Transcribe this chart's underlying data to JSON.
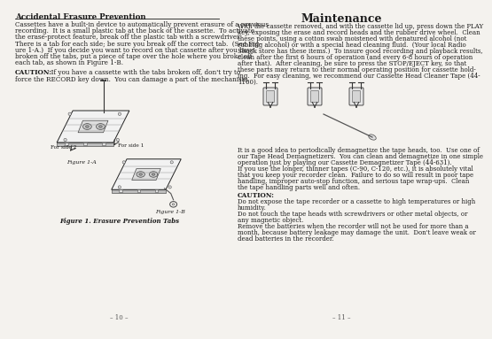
{
  "bg_color": "#f4f2ee",
  "text_color": "#1a1a1a",
  "left_title": "Accidental Erasure Prevention",
  "right_title": "Maintenance",
  "left_body": [
    "Cassettes have a built-in device to automatically prevent erasure of a previous",
    "recording.  It is a small plastic tab at the back of the cassette.  To activate",
    "the erase-protect feature, break off the plastic tab with a screwdriver.",
    "There is a tab for each side; be sure you break off the correct tab.  (See Fig-",
    "ure 1-A.)  If you decide you want to record on that cassette after you have",
    "broken off the tabs, put a piece of tape over the hole where you broke off",
    "each tab, as shown in Figure 1-B.",
    "",
    "CAUTION:  If you have a cassette with the tabs broken off, don't try to",
    "force the RECORD key down.  You can damage a part of the mechanism."
  ],
  "right_body1": [
    "With the cassette removed, and with the cassette lid up, press down the PLAY",
    "key, exposing the erase and record heads and the rubber drive wheel.  Clean",
    "these points, using a cotton swab moistened with denatured alcohol (not",
    "rubbing alcohol) or with a special head cleaning fluid.  (Your local Radio",
    "Shack store has these items.)  To insure good recording and playback results,",
    "clean after the first 6 hours of operation (and every 6-8 hours of operation",
    "after that).  After cleaning, be sure to press the STOP/EJECT key, so that",
    "these parts may return to their normal operating position for cassette hold-",
    "ing.  For easy cleaning, we recommend our Cassette Head Cleaner Tape (44-",
    "1160)."
  ],
  "right_body2": [
    "It is a good idea to periodically demagnetize the tape heads, too.  Use one of",
    "our Tape Head Demagnetizers.  You can clean and demagnetize in one simple",
    "operation just by playing our Cassette Demagnetizer Tape (44-631).",
    "If you use the longer, thinner tapes (C-90, C-120, etc.), it is absolutely vital",
    "that you keep your recorder clean.  Failure to do so will result in poor tape",
    "handling, improper auto-stop function, and serious tape wrap-ups.  Clean",
    "the tape handling parts well and often."
  ],
  "caution_title": "CAUTION:",
  "caution_lines": [
    "Do not expose the tape recorder or a cassette to high temperatures or high",
    "humidity.",
    "Do not touch the tape heads with screwdrivers or other metal objects, or",
    "any magnetic object.",
    "Remove the batteries when the recorder will not be used for more than a",
    "month, because battery leakage may damage the unit.  Don't leave weak or",
    "dead batteries in the recorder."
  ],
  "fig1_caption": "Figure 1. Erasure Prevention Tabs",
  "page_left": "– 10 –",
  "page_right": "– 11 –",
  "fig1a_label": "Figure 1-A",
  "fig1b_label": "Figure 1-B",
  "for_side1": "For side 1",
  "for_side2": "For side 2"
}
